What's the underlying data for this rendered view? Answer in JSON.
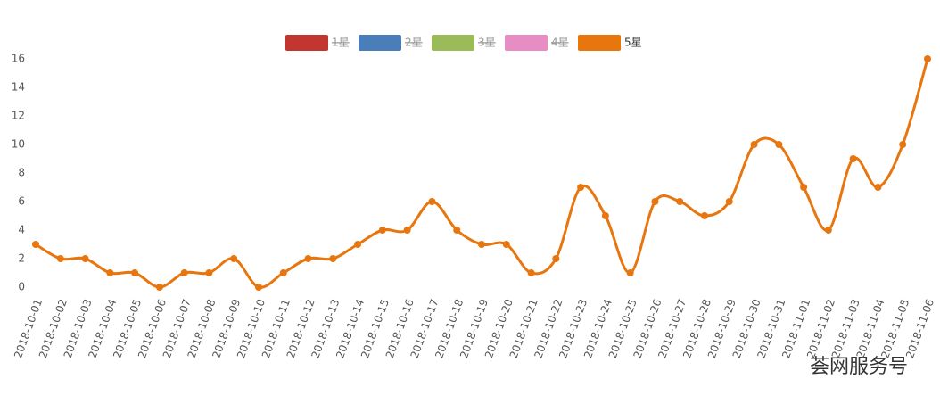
{
  "chart_data": {
    "type": "line",
    "categories": [
      "2018-10-01",
      "2018-10-02",
      "2018-10-03",
      "2018-10-04",
      "2018-10-05",
      "2018-10-06",
      "2018-10-07",
      "2018-10-08",
      "2018-10-09",
      "2018-10-10",
      "2018-10-11",
      "2018-10-12",
      "2018-10-13",
      "2018-10-14",
      "2018-10-15",
      "2018-10-16",
      "2018-10-17",
      "2018-10-18",
      "2018-10-19",
      "2018-10-20",
      "2018-10-21",
      "2018-10-22",
      "2018-10-23",
      "2018-10-24",
      "2018-10-25",
      "2018-10-26",
      "2018-10-27",
      "2018-10-28",
      "2018-10-29",
      "2018-10-30",
      "2018-10-31",
      "2018-11-01",
      "2018-11-02",
      "2018-11-03",
      "2018-11-04",
      "2018-11-05",
      "2018-11-06"
    ],
    "series": [
      {
        "name": "1星",
        "color": "#c23531",
        "visible": false
      },
      {
        "name": "2星",
        "color": "#4a7ebb",
        "visible": false
      },
      {
        "name": "3星",
        "color": "#9bbb59",
        "visible": false
      },
      {
        "name": "4星",
        "color": "#e88cc4",
        "visible": false
      },
      {
        "name": "5星",
        "color": "#e8760f",
        "visible": true,
        "values": [
          3,
          2,
          2,
          1,
          1,
          0,
          1,
          1,
          2,
          0,
          1,
          2,
          2,
          3,
          4,
          4,
          6,
          4,
          3,
          3,
          1,
          2,
          7,
          5,
          1,
          6,
          6,
          5,
          6,
          10,
          10,
          7,
          4,
          9,
          7,
          10,
          16
        ]
      }
    ],
    "ylim": [
      0,
      16
    ],
    "yticks": [
      0,
      2,
      4,
      6,
      8,
      10,
      12,
      14,
      16
    ],
    "grid": false,
    "legend": "top",
    "smooth": true,
    "watermark": "荟网服务号"
  }
}
